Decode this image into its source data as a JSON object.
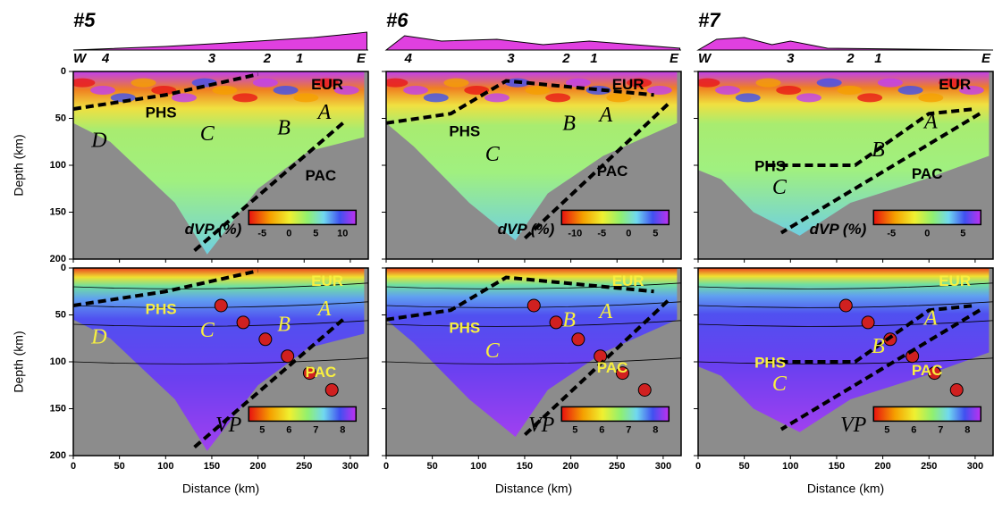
{
  "panels": [
    {
      "title": "#5",
      "markers": [
        "W",
        "4",
        "3",
        "2",
        "1",
        "E"
      ],
      "labels": [
        "EUR",
        "PHS",
        "A",
        "B",
        "C",
        "D",
        "PAC"
      ],
      "colorbar_top": {
        "label": "dVP (%)",
        "ticks": [
          -5,
          0,
          5,
          10
        ]
      },
      "colorbar_bottom": {
        "label": "VP",
        "ticks": [
          5,
          6,
          7,
          8
        ]
      }
    },
    {
      "title": "#6",
      "markers": [
        "4",
        "3",
        "2",
        "1",
        "E"
      ],
      "labels": [
        "EUR",
        "PHS",
        "A",
        "B",
        "C",
        "PAC"
      ],
      "colorbar_top": {
        "label": "dVP (%)",
        "ticks": [
          -10,
          -5,
          0,
          5
        ]
      },
      "colorbar_bottom": {
        "label": "VP",
        "ticks": [
          5,
          6,
          7,
          8
        ]
      }
    },
    {
      "title": "#7",
      "markers": [
        "W",
        "3",
        "2",
        "1",
        "E"
      ],
      "labels": [
        "EUR",
        "PHS",
        "A",
        "B",
        "C",
        "PAC"
      ],
      "colorbar_top": {
        "label": "dVP (%)",
        "ticks": [
          -5,
          0,
          5
        ]
      },
      "colorbar_bottom": {
        "label": "VP",
        "ticks": [
          5,
          6,
          7,
          8
        ]
      }
    }
  ],
  "y_axis": {
    "label": "Depth (km)",
    "ticks": [
      0,
      50,
      100,
      150,
      200
    ]
  },
  "x_axis": {
    "label": "Distance (km)",
    "ticks": [
      0,
      50,
      100,
      150,
      200,
      250,
      300
    ]
  }
}
